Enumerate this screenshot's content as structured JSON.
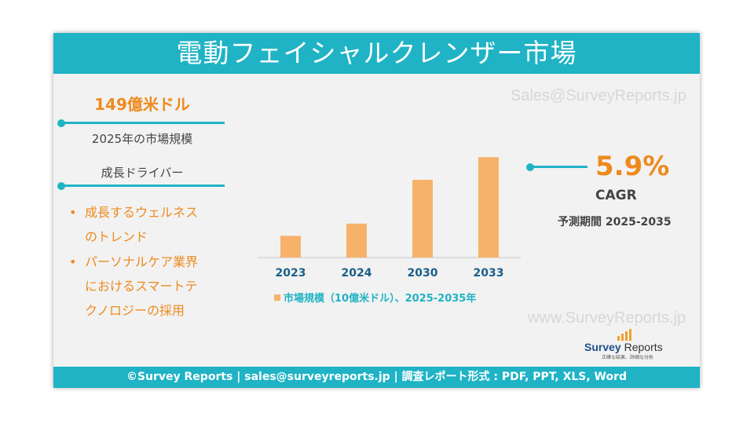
{
  "title": "電動フェイシャルクレンザー市場",
  "watermarks": [
    "Sales@SurveyReports.jp",
    "www.SurveyReports.jp"
  ],
  "left_panel": {
    "market_value": "149億米ドル",
    "market_value_label": "2025年の市場規模",
    "drivers_heading": "成長ドライバー",
    "drivers": [
      {
        "line1": "成長するウェルネス",
        "line2": "のトレンド"
      },
      {
        "line1": "パーソナルケア業界",
        "line2": "におけるスマートテ",
        "line3": "クノロジーの採用"
      }
    ]
  },
  "right_panel": {
    "cagr_value": "5.9%",
    "cagr_label": "CAGR",
    "forecast_period": "予測期間 2025-2035"
  },
  "chart_data": {
    "type": "bar",
    "categories": [
      "2023",
      "2024",
      "2030",
      "2033"
    ],
    "values": [
      4.6,
      7.2,
      16.5,
      21.3
    ],
    "ylim": [
      0,
      25
    ],
    "legend": "市場規模（10億米ドル）、2025-2035年",
    "legend_position": "bottom",
    "grid": false,
    "bar_color": "#f7b26a"
  },
  "logo": {
    "name_part1": "Survey",
    "name_part2": "Reports",
    "tagline": "正確な結果、詳細な分析"
  },
  "footer": "©Survey Reports | sales@surveyreports.jp |  調査レポート形式 : PDF, PPT, XLS, Word",
  "colors": {
    "accent": "#1fb3c5",
    "highlight": "#ee8a1d",
    "background": "#f2f2f2"
  }
}
